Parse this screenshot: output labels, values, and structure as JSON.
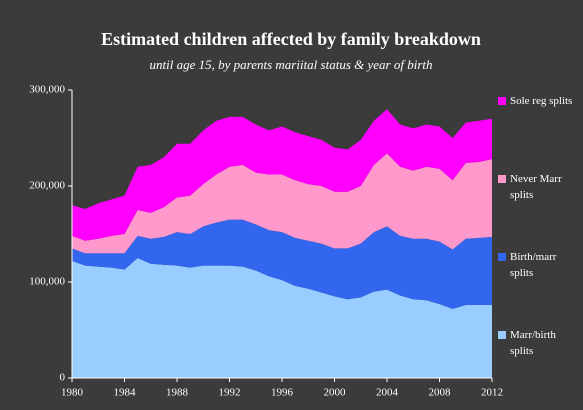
{
  "chart_data": {
    "type": "stacked_area",
    "title": "Estimated children affected by family breakdown",
    "subtitle": "until age 15, by parents mariital status & year of birth",
    "x": [
      1980,
      1981,
      1982,
      1983,
      1984,
      1985,
      1986,
      1987,
      1988,
      1989,
      1990,
      1991,
      1992,
      1993,
      1994,
      1995,
      1996,
      1997,
      1998,
      1999,
      2000,
      2001,
      2002,
      2003,
      2004,
      2005,
      2006,
      2007,
      2008,
      2009,
      2010,
      2011,
      2012
    ],
    "xlim": [
      1980,
      2012
    ],
    "xticks": [
      1980,
      1984,
      1988,
      1992,
      1996,
      2000,
      2004,
      2008,
      2012
    ],
    "ylim": [
      0,
      300000
    ],
    "yticks": [
      0,
      {
        "value": 100000,
        "label": "100,000"
      },
      {
        "value": 200000,
        "label": "200,000"
      },
      {
        "value": 300000,
        "label": "300,000"
      }
    ],
    "series": [
      {
        "name": "Marr/birth splits",
        "color": "#99ccff",
        "values": [
          122000,
          117000,
          116000,
          115000,
          113000,
          125000,
          119000,
          118000,
          117000,
          115000,
          117000,
          117000,
          117000,
          116000,
          112000,
          106000,
          102000,
          96000,
          93000,
          89000,
          85000,
          82000,
          84000,
          90000,
          92000,
          86000,
          82000,
          81000,
          77000,
          72000,
          76000,
          76000,
          76000
        ]
      },
      {
        "name": "Birth/marr splits",
        "color": "#3366ee",
        "values": [
          13000,
          13000,
          14000,
          15000,
          17000,
          23000,
          26000,
          29000,
          35000,
          35000,
          41000,
          45000,
          48000,
          49000,
          48000,
          48000,
          50000,
          50000,
          50000,
          51000,
          50000,
          53000,
          56000,
          62000,
          66000,
          62000,
          63000,
          64000,
          65000,
          62000,
          69000,
          70000,
          71000
        ]
      },
      {
        "name": "Never Marr splits",
        "color": "#ff99cc",
        "values": [
          13000,
          13000,
          15000,
          18000,
          20000,
          27000,
          27000,
          31000,
          36000,
          40000,
          44000,
          50000,
          55000,
          57000,
          54000,
          58000,
          60000,
          60000,
          59000,
          60000,
          59000,
          59000,
          60000,
          70000,
          76000,
          72000,
          71000,
          75000,
          76000,
          72000,
          79000,
          79000,
          81000
        ]
      },
      {
        "name": "Sole reg splits",
        "color": "#ff00ff",
        "values": [
          32000,
          33000,
          37000,
          38000,
          40000,
          45000,
          50000,
          52000,
          56000,
          54000,
          56000,
          56000,
          52000,
          50000,
          50000,
          46000,
          50000,
          50000,
          50000,
          48000,
          46000,
          44000,
          48000,
          46000,
          46000,
          44000,
          44000,
          44000,
          44000,
          44000,
          42000,
          43000,
          42000
        ]
      }
    ]
  }
}
